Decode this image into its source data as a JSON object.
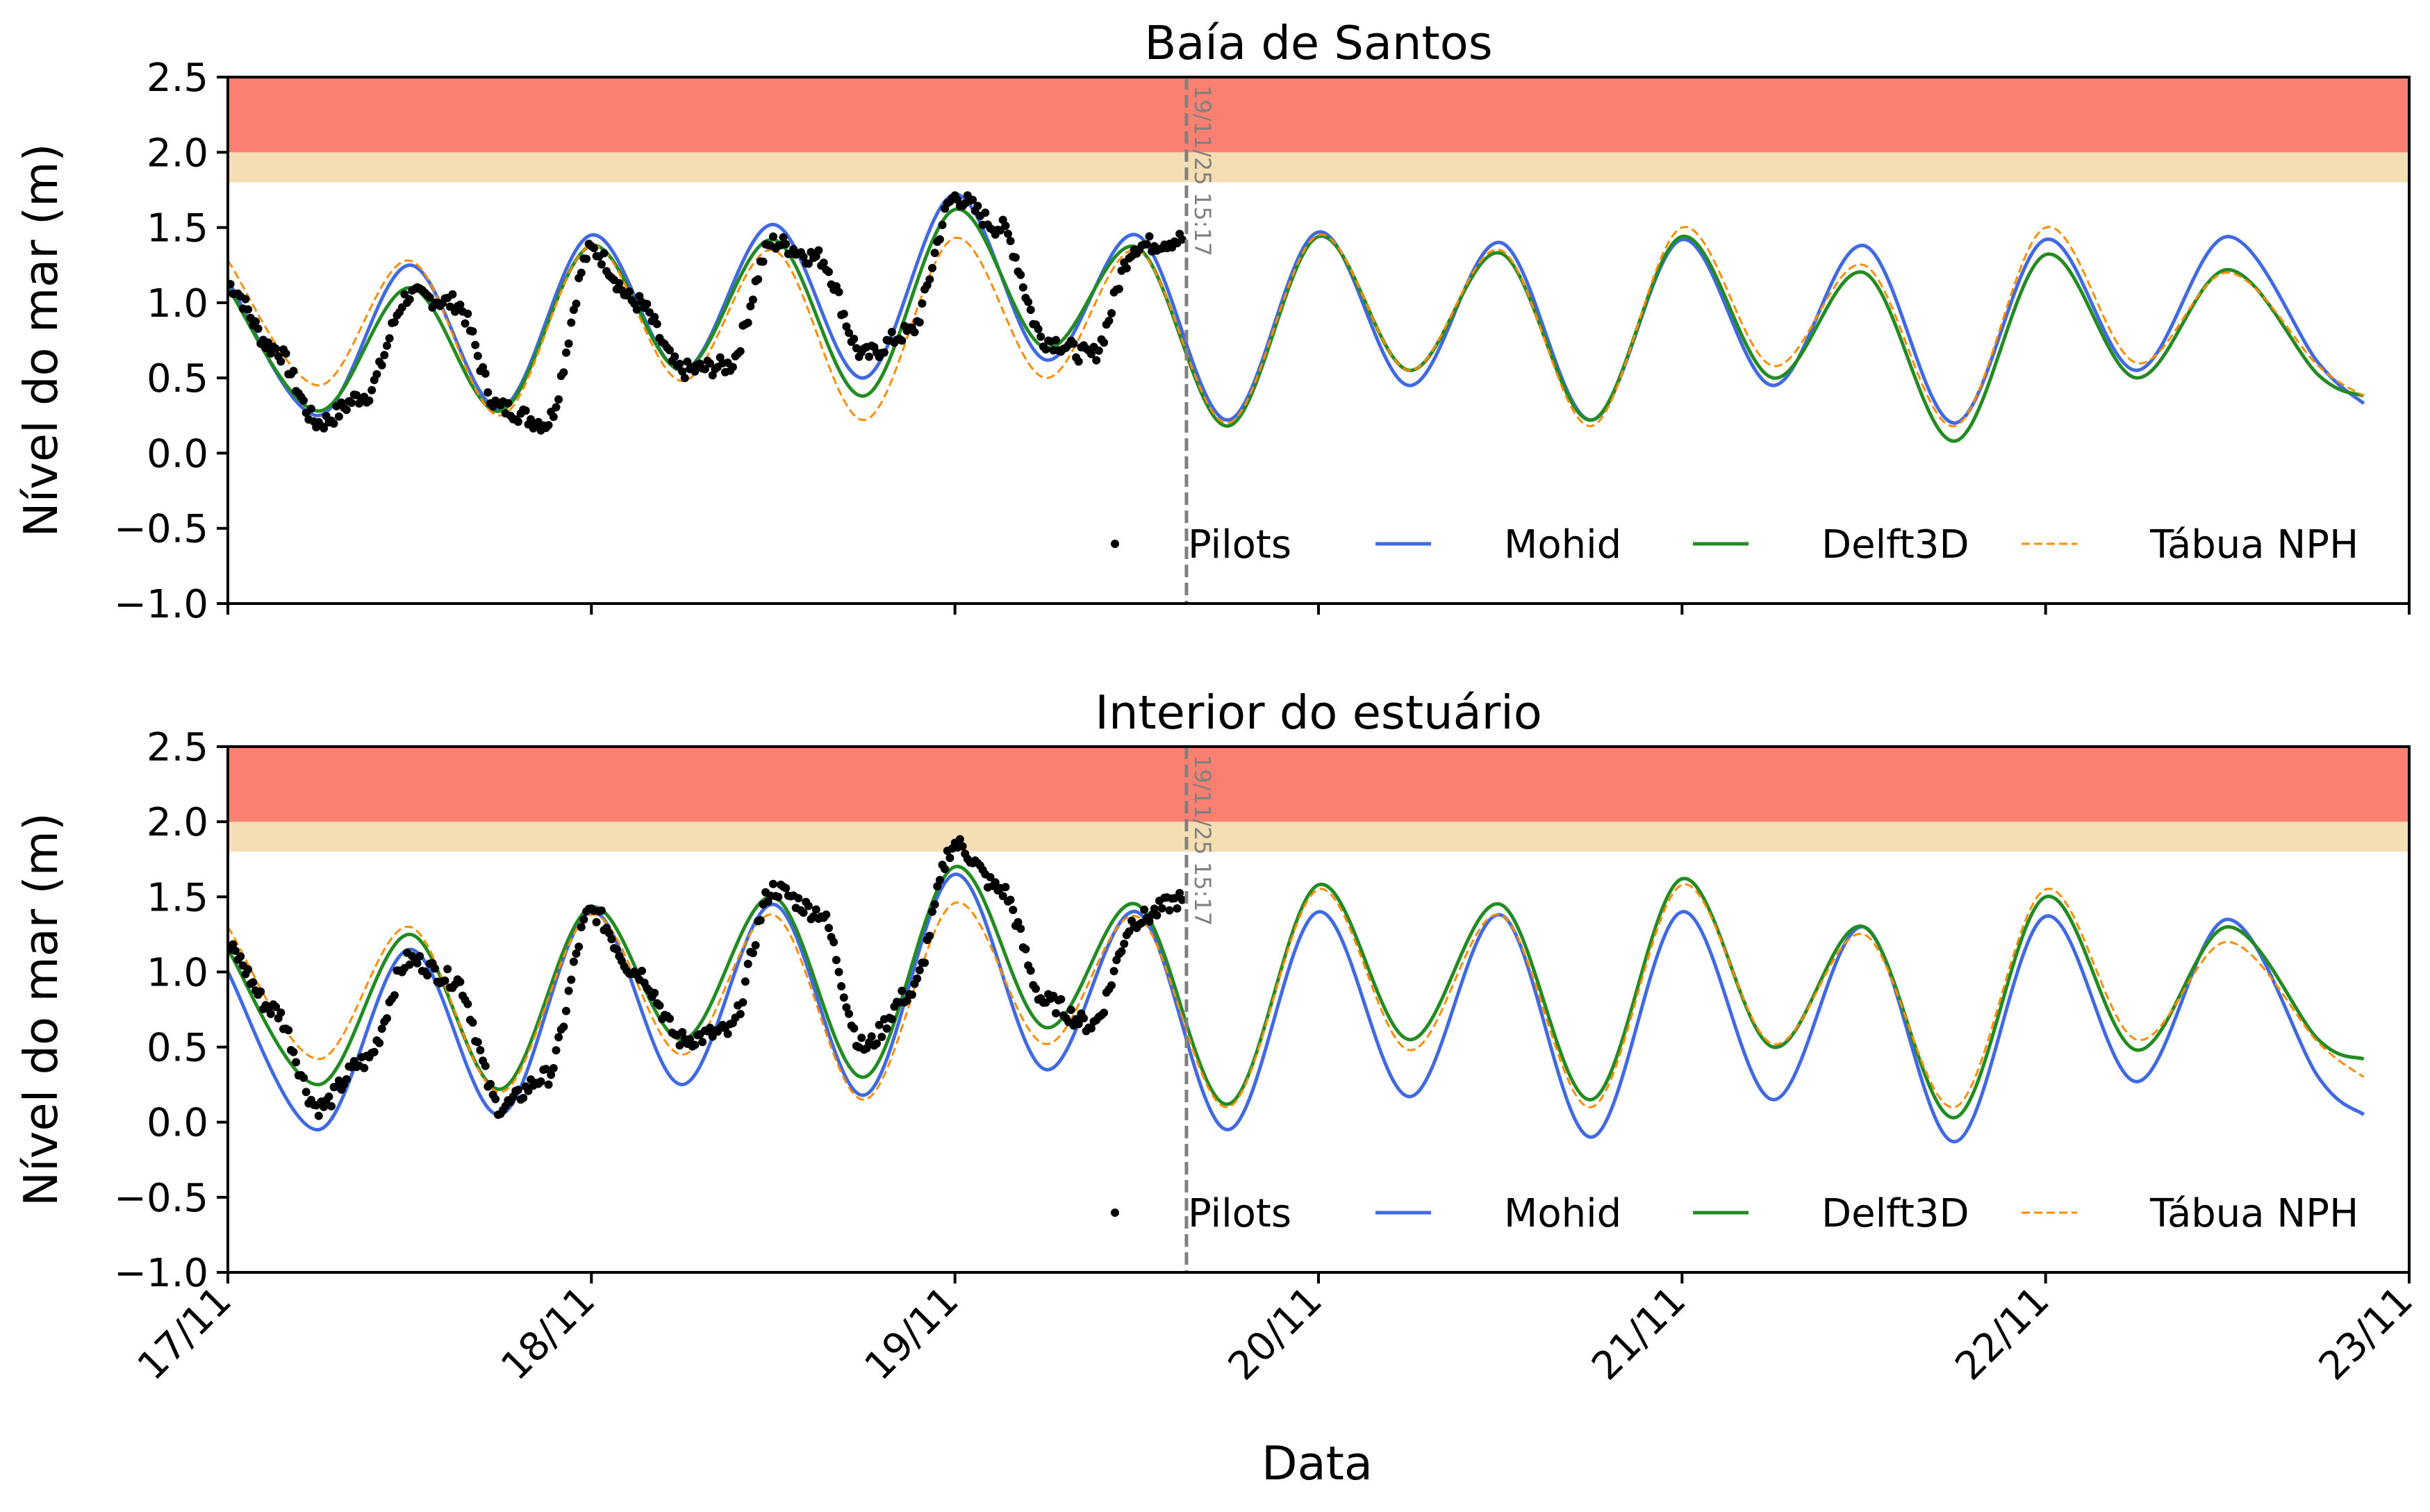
{
  "figure": {
    "xlabel": "Data",
    "x_ticks": [
      "17/11",
      "18/11",
      "19/11",
      "20/11",
      "21/11",
      "22/11",
      "23/11"
    ],
    "colors": {
      "pilots": "#000000",
      "mohid": "#4169E1",
      "delft3d": "#228B22",
      "tabua": "#FF8C00",
      "band_red": "#FA8072",
      "band_yellow": "#F5DEB3",
      "forecast_line": "#808080"
    }
  },
  "chart_data": [
    {
      "type": "line",
      "title": "Baía de Santos",
      "ylabel": "Nível do mar (m)",
      "xlim": [
        "2025-11-17 00:00",
        "2025-11-23 00:00"
      ],
      "ylim": [
        -1.0,
        2.5
      ],
      "y_ticks": [
        "2.5",
        "2.0",
        "1.5",
        "1.0",
        "0.5",
        "0.0",
        "−0.5",
        "−1.0"
      ],
      "grid": false,
      "legend": "lower right",
      "vline": {
        "x": "2025-11-19 15:17",
        "label": "19/11/25 15:17"
      },
      "bands": [
        {
          "y0": 1.8,
          "y1": 2.0,
          "color": "#F5DEB3"
        },
        {
          "y0": 2.0,
          "y1": 2.5,
          "color": "#FA8072"
        }
      ],
      "series_labels": [
        "Pilots",
        "Mohid",
        "Delft3D",
        "Tábua NPH"
      ],
      "series": [
        {
          "name": "Pilots",
          "style": "points",
          "x": [
            "2025-11-17 00:00",
            "2025-11-17 03:00",
            "2025-11-17 06:00",
            "2025-11-17 09:00",
            "2025-11-17 12:00",
            "2025-11-17 15:00",
            "2025-11-17 18:00",
            "2025-11-17 21:00",
            "2025-11-18 00:00",
            "2025-11-18 03:00",
            "2025-11-18 06:00",
            "2025-11-18 09:00",
            "2025-11-18 12:00",
            "2025-11-18 15:00",
            "2025-11-18 18:00",
            "2025-11-18 21:00",
            "2025-11-19 00:00",
            "2025-11-19 03:00",
            "2025-11-19 06:00",
            "2025-11-19 09:00",
            "2025-11-19 12:00",
            "2025-11-19 15:00"
          ],
          "y": [
            1.12,
            0.7,
            0.2,
            0.38,
            1.05,
            1.0,
            0.3,
            0.2,
            1.35,
            1.0,
            0.55,
            0.58,
            1.4,
            1.3,
            0.65,
            0.8,
            1.7,
            1.5,
            0.75,
            0.65,
            1.38,
            1.42
          ]
        },
        {
          "name": "Mohid",
          "style": "solid",
          "x": [
            "2025-11-17 00:00",
            "2025-11-17 06:00",
            "2025-11-17 12:00",
            "2025-11-17 18:00",
            "2025-11-18 00:00",
            "2025-11-18 06:00",
            "2025-11-18 12:00",
            "2025-11-18 18:00",
            "2025-11-19 00:00",
            "2025-11-19 06:00",
            "2025-11-19 12:00",
            "2025-11-19 18:00",
            "2025-11-20 00:00",
            "2025-11-20 06:00",
            "2025-11-20 12:00",
            "2025-11-20 18:00",
            "2025-11-21 00:00",
            "2025-11-21 06:00",
            "2025-11-21 12:00",
            "2025-11-21 18:00",
            "2025-11-22 00:00",
            "2025-11-22 06:00",
            "2025-11-22 12:00",
            "2025-11-22 18:00",
            "2025-11-22 21:00"
          ],
          "y": [
            1.15,
            0.25,
            1.25,
            0.3,
            1.45,
            0.55,
            1.52,
            0.5,
            1.72,
            0.62,
            1.45,
            0.22,
            1.47,
            0.45,
            1.4,
            0.22,
            1.42,
            0.45,
            1.38,
            0.2,
            1.42,
            0.55,
            1.44,
            0.6,
            0.33
          ]
        },
        {
          "name": "Delft3D",
          "style": "solid",
          "x": [
            "2025-11-17 00:00",
            "2025-11-17 06:00",
            "2025-11-17 12:00",
            "2025-11-17 18:00",
            "2025-11-18 00:00",
            "2025-11-18 06:00",
            "2025-11-18 12:00",
            "2025-11-18 18:00",
            "2025-11-19 00:00",
            "2025-11-19 06:00",
            "2025-11-19 12:00",
            "2025-11-19 18:00",
            "2025-11-20 00:00",
            "2025-11-20 06:00",
            "2025-11-20 12:00",
            "2025-11-20 18:00",
            "2025-11-21 00:00",
            "2025-11-21 06:00",
            "2025-11-21 12:00",
            "2025-11-21 18:00",
            "2025-11-22 00:00",
            "2025-11-22 06:00",
            "2025-11-22 12:00",
            "2025-11-22 18:00",
            "2025-11-22 21:00"
          ],
          "y": [
            1.1,
            0.28,
            1.1,
            0.28,
            1.38,
            0.55,
            1.42,
            0.38,
            1.62,
            0.7,
            1.37,
            0.18,
            1.44,
            0.55,
            1.33,
            0.22,
            1.44,
            0.5,
            1.2,
            0.08,
            1.32,
            0.5,
            1.22,
            0.52,
            0.38
          ]
        },
        {
          "name": "Tábua NPH",
          "style": "dashed",
          "x": [
            "2025-11-17 00:00",
            "2025-11-17 06:00",
            "2025-11-17 12:00",
            "2025-11-17 18:00",
            "2025-11-18 00:00",
            "2025-11-18 06:00",
            "2025-11-18 12:00",
            "2025-11-18 18:00",
            "2025-11-19 00:00",
            "2025-11-19 06:00",
            "2025-11-19 12:00",
            "2025-11-19 18:00",
            "2025-11-20 00:00",
            "2025-11-20 06:00",
            "2025-11-20 12:00",
            "2025-11-20 18:00",
            "2025-11-21 00:00",
            "2025-11-21 06:00",
            "2025-11-21 12:00",
            "2025-11-21 18:00",
            "2025-11-22 00:00",
            "2025-11-22 06:00",
            "2025-11-22 12:00",
            "2025-11-22 18:00",
            "2025-11-22 21:00"
          ],
          "y": [
            1.28,
            0.45,
            1.28,
            0.25,
            1.38,
            0.48,
            1.35,
            0.22,
            1.43,
            0.5,
            1.35,
            0.2,
            1.45,
            0.55,
            1.35,
            0.18,
            1.5,
            0.58,
            1.25,
            0.18,
            1.5,
            0.6,
            1.2,
            0.58,
            0.38
          ]
        }
      ]
    },
    {
      "type": "line",
      "title": "Interior do estuário",
      "ylabel": "Nível do mar (m)",
      "xlim": [
        "2025-11-17 00:00",
        "2025-11-23 00:00"
      ],
      "ylim": [
        -1.0,
        2.5
      ],
      "y_ticks": [
        "2.5",
        "2.0",
        "1.5",
        "1.0",
        "0.5",
        "0.0",
        "−0.5",
        "−1.0"
      ],
      "grid": false,
      "legend": "lower right",
      "vline": {
        "x": "2025-11-19 15:17",
        "label": "19/11/25 15:17"
      },
      "bands": [
        {
          "y0": 1.8,
          "y1": 2.0,
          "color": "#F5DEB3"
        },
        {
          "y0": 2.0,
          "y1": 2.5,
          "color": "#FA8072"
        }
      ],
      "series_labels": [
        "Pilots",
        "Mohid",
        "Delft3D",
        "Tábua NPH"
      ],
      "series": [
        {
          "name": "Pilots",
          "style": "points",
          "x": [
            "2025-11-17 00:00",
            "2025-11-17 03:00",
            "2025-11-17 06:00",
            "2025-11-17 09:00",
            "2025-11-17 12:00",
            "2025-11-17 15:00",
            "2025-11-17 18:00",
            "2025-11-17 21:00",
            "2025-11-18 00:00",
            "2025-11-18 03:00",
            "2025-11-18 06:00",
            "2025-11-18 09:00",
            "2025-11-18 12:00",
            "2025-11-18 15:00",
            "2025-11-18 18:00",
            "2025-11-18 21:00",
            "2025-11-19 00:00",
            "2025-11-19 03:00",
            "2025-11-19 06:00",
            "2025-11-19 09:00",
            "2025-11-19 12:00",
            "2025-11-19 15:00"
          ],
          "y": [
            1.15,
            0.75,
            0.1,
            0.4,
            1.08,
            0.95,
            0.1,
            0.3,
            1.4,
            1.0,
            0.55,
            0.6,
            1.55,
            1.4,
            0.5,
            0.85,
            1.85,
            1.55,
            0.8,
            0.65,
            1.35,
            1.48
          ]
        },
        {
          "name": "Mohid",
          "style": "solid",
          "x": [
            "2025-11-17 00:00",
            "2025-11-17 06:00",
            "2025-11-17 12:00",
            "2025-11-17 18:00",
            "2025-11-18 00:00",
            "2025-11-18 06:00",
            "2025-11-18 12:00",
            "2025-11-18 18:00",
            "2025-11-19 00:00",
            "2025-11-19 06:00",
            "2025-11-19 12:00",
            "2025-11-19 18:00",
            "2025-11-20 00:00",
            "2025-11-20 06:00",
            "2025-11-20 12:00",
            "2025-11-20 18:00",
            "2025-11-21 00:00",
            "2025-11-21 06:00",
            "2025-11-21 12:00",
            "2025-11-21 18:00",
            "2025-11-22 00:00",
            "2025-11-22 06:00",
            "2025-11-22 12:00",
            "2025-11-22 18:00",
            "2025-11-22 21:00"
          ],
          "y": [
            1.0,
            -0.05,
            1.15,
            0.05,
            1.4,
            0.25,
            1.45,
            0.18,
            1.65,
            0.35,
            1.4,
            -0.05,
            1.4,
            0.17,
            1.38,
            -0.1,
            1.4,
            0.15,
            1.3,
            -0.13,
            1.37,
            0.27,
            1.35,
            0.3,
            0.05
          ]
        },
        {
          "name": "Delft3D",
          "style": "solid",
          "x": [
            "2025-11-17 00:00",
            "2025-11-17 06:00",
            "2025-11-17 12:00",
            "2025-11-17 18:00",
            "2025-11-18 00:00",
            "2025-11-18 06:00",
            "2025-11-18 12:00",
            "2025-11-18 18:00",
            "2025-11-19 00:00",
            "2025-11-19 06:00",
            "2025-11-19 12:00",
            "2025-11-19 18:00",
            "2025-11-20 00:00",
            "2025-11-20 06:00",
            "2025-11-20 12:00",
            "2025-11-20 18:00",
            "2025-11-21 00:00",
            "2025-11-21 06:00",
            "2025-11-21 12:00",
            "2025-11-21 18:00",
            "2025-11-22 00:00",
            "2025-11-22 06:00",
            "2025-11-22 12:00",
            "2025-11-22 18:00",
            "2025-11-22 21:00"
          ],
          "y": [
            1.15,
            0.25,
            1.25,
            0.22,
            1.43,
            0.55,
            1.5,
            0.3,
            1.7,
            0.63,
            1.45,
            0.12,
            1.58,
            0.55,
            1.45,
            0.15,
            1.62,
            0.5,
            1.3,
            0.03,
            1.5,
            0.48,
            1.3,
            0.55,
            0.42
          ]
        },
        {
          "name": "Tábua NPH",
          "style": "dashed",
          "x": [
            "2025-11-17 00:00",
            "2025-11-17 06:00",
            "2025-11-17 12:00",
            "2025-11-17 18:00",
            "2025-11-18 00:00",
            "2025-11-18 06:00",
            "2025-11-18 12:00",
            "2025-11-18 18:00",
            "2025-11-19 00:00",
            "2025-11-19 06:00",
            "2025-11-19 12:00",
            "2025-11-19 18:00",
            "2025-11-20 00:00",
            "2025-11-20 06:00",
            "2025-11-20 12:00",
            "2025-11-20 18:00",
            "2025-11-21 00:00",
            "2025-11-21 06:00",
            "2025-11-21 12:00",
            "2025-11-21 18:00",
            "2025-11-22 00:00",
            "2025-11-22 06:00",
            "2025-11-22 12:00",
            "2025-11-22 18:00",
            "2025-11-22 21:00"
          ],
          "y": [
            1.3,
            0.42,
            1.3,
            0.2,
            1.38,
            0.45,
            1.38,
            0.15,
            1.46,
            0.52,
            1.37,
            0.1,
            1.55,
            0.48,
            1.38,
            0.1,
            1.58,
            0.52,
            1.25,
            0.1,
            1.55,
            0.55,
            1.2,
            0.53,
            0.3
          ]
        }
      ]
    }
  ]
}
